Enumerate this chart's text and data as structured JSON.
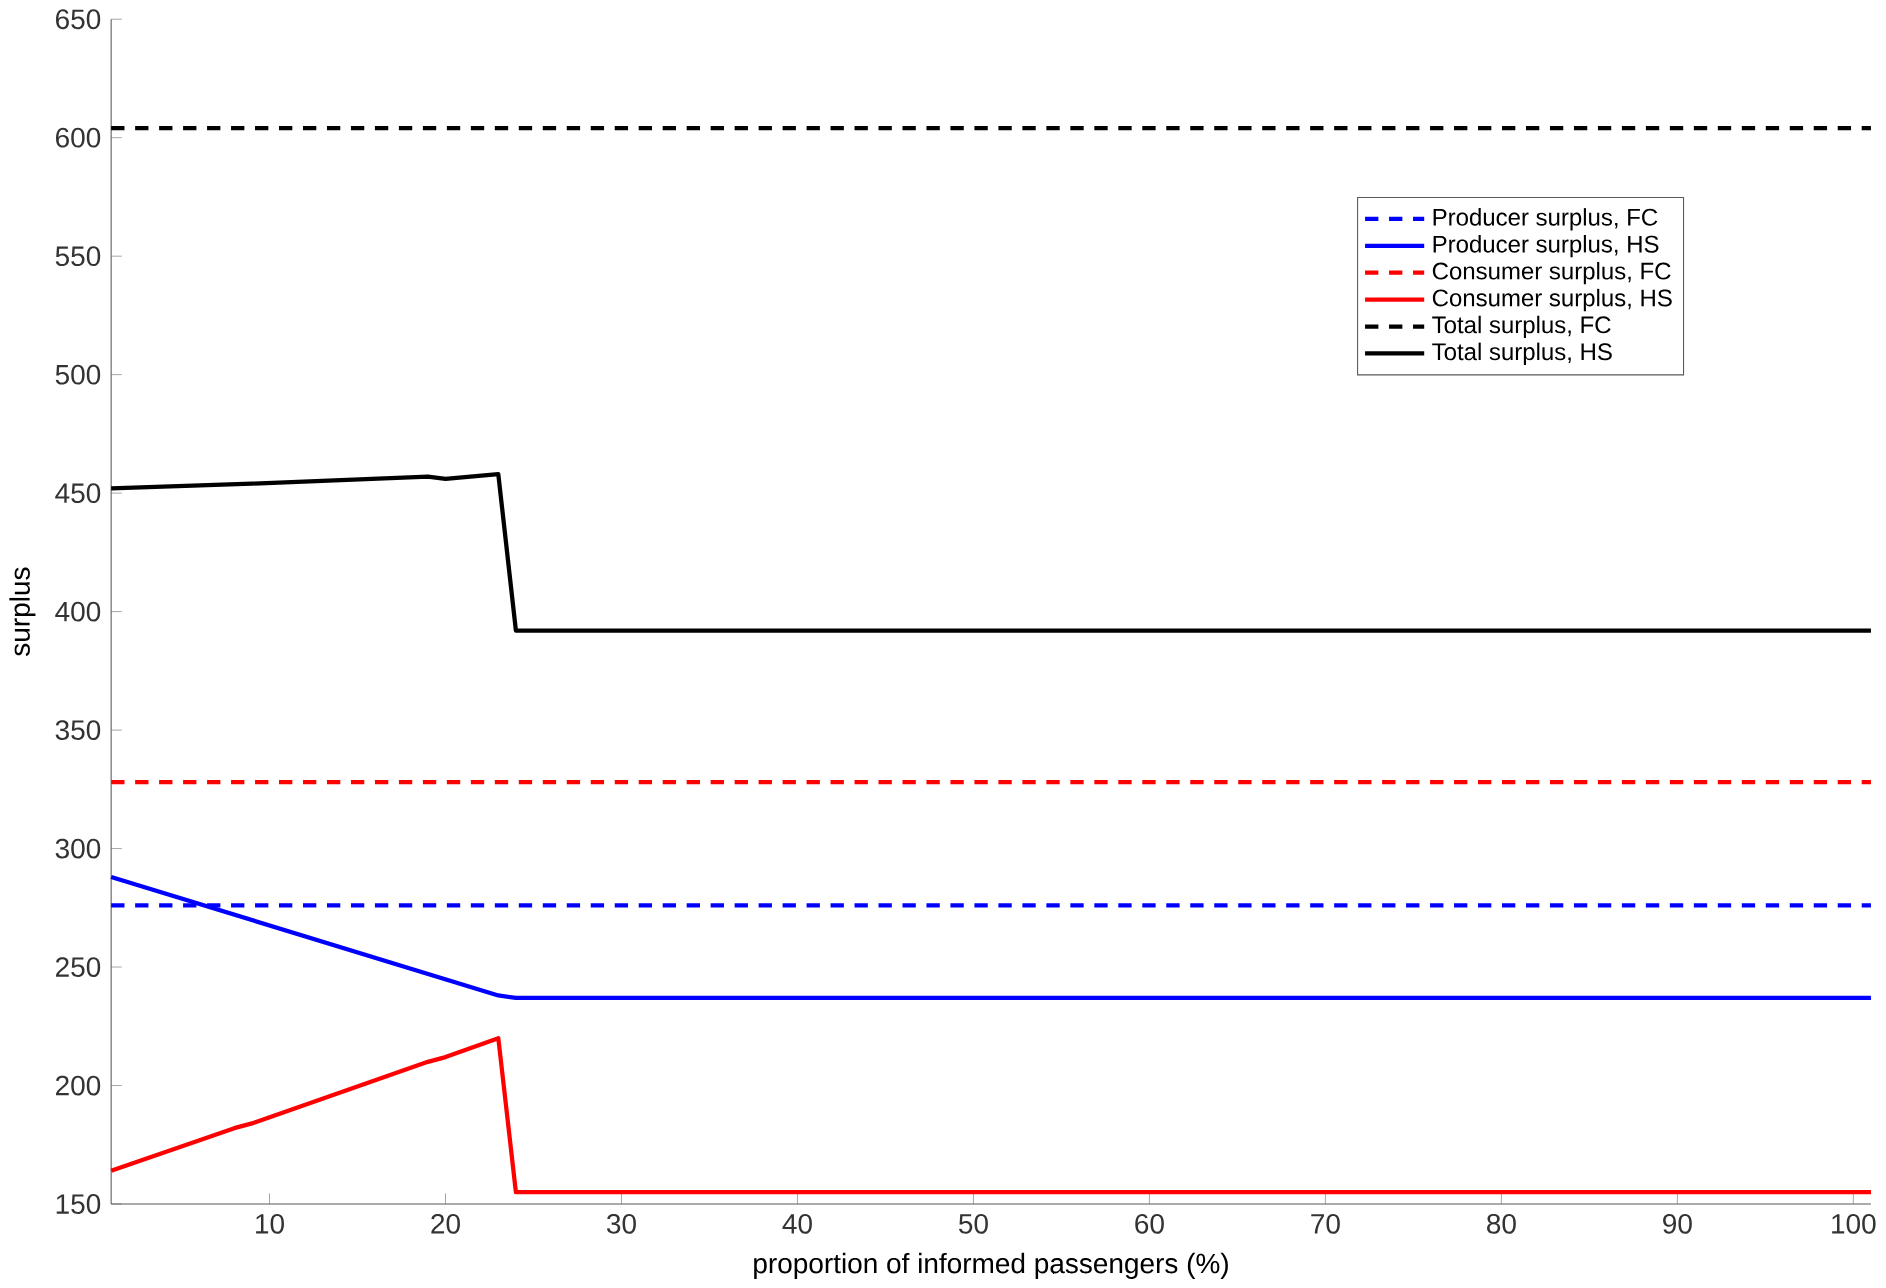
{
  "chart_data": {
    "type": "line",
    "xlabel": "proportion of informed passengers (%)",
    "ylabel": "surplus",
    "xlim": [
      1,
      101
    ],
    "ylim": [
      150,
      650
    ],
    "xticks": [
      10,
      20,
      30,
      40,
      50,
      60,
      70,
      80,
      90,
      100
    ],
    "yticks": [
      150,
      200,
      250,
      300,
      350,
      400,
      450,
      500,
      550,
      600,
      650
    ],
    "legend": "top right",
    "grid": false,
    "series": [
      {
        "name": "Producer surplus, FC",
        "color": "#0000ff",
        "line_style": "dashed",
        "x": [
          1,
          101
        ],
        "values": [
          276,
          276
        ]
      },
      {
        "name": "Producer surplus, HS",
        "color": "#0000ff",
        "line_style": "solid",
        "x": [
          1,
          23,
          24,
          101
        ],
        "values": [
          288,
          238,
          237,
          237
        ]
      },
      {
        "name": "Consumer surplus, FC",
        "color": "#ff0000",
        "line_style": "dashed",
        "x": [
          1,
          101
        ],
        "values": [
          328,
          328
        ]
      },
      {
        "name": "Consumer surplus, HS",
        "color": "#ff0000",
        "line_style": "solid",
        "x": [
          1,
          8,
          9,
          19,
          20,
          23,
          24,
          101
        ],
        "values": [
          164,
          182,
          184,
          210,
          212,
          220,
          155,
          155
        ]
      },
      {
        "name": "Total surplus, FC",
        "color": "#000000",
        "line_style": "dashed",
        "x": [
          1,
          101
        ],
        "values": [
          604,
          604
        ]
      },
      {
        "name": "Total surplus, HS",
        "color": "#000000",
        "line_style": "solid",
        "x": [
          1,
          9,
          19,
          20,
          23,
          24,
          101
        ],
        "values": [
          452,
          454,
          457,
          456,
          458,
          392,
          392
        ]
      }
    ]
  }
}
